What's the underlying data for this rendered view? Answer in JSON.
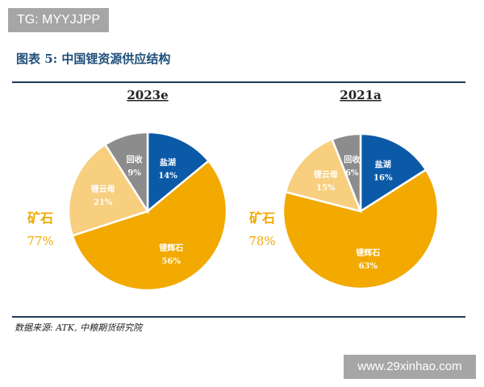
{
  "watermarks": {
    "top": "TG: MYYJJPP",
    "bottom": "www.29xinhao.com"
  },
  "title": "图表 5: 中国锂资源供应结构",
  "source": "数据来源: ATK, 中粮期货研究院",
  "chart_data": [
    {
      "type": "pie",
      "title": "2023e",
      "start": "top",
      "direction": "clockwise",
      "slices": [
        {
          "label": "盐湖",
          "value": 14,
          "color": "#0b5aa8"
        },
        {
          "label": "锂辉石",
          "value": 56,
          "color": "#f2a900"
        },
        {
          "label": "锂云母",
          "value": 21,
          "color": "#f7cf7f"
        },
        {
          "label": "回收",
          "value": 9,
          "color": "#8c8c8c"
        }
      ],
      "annotation": {
        "label": "矿石",
        "value": "77%",
        "color": "#f2a900"
      }
    },
    {
      "type": "pie",
      "title": "2021a",
      "start": "top",
      "direction": "clockwise",
      "slices": [
        {
          "label": "盐湖",
          "value": 16,
          "color": "#0b5aa8"
        },
        {
          "label": "锂辉石",
          "value": 63,
          "color": "#f2a900"
        },
        {
          "label": "锂云母",
          "value": 15,
          "color": "#f7cf7f"
        },
        {
          "label": "回收",
          "value": 6,
          "color": "#8c8c8c"
        }
      ],
      "annotation": {
        "label": "矿石",
        "value": "78%",
        "color": "#f2a900"
      }
    }
  ]
}
